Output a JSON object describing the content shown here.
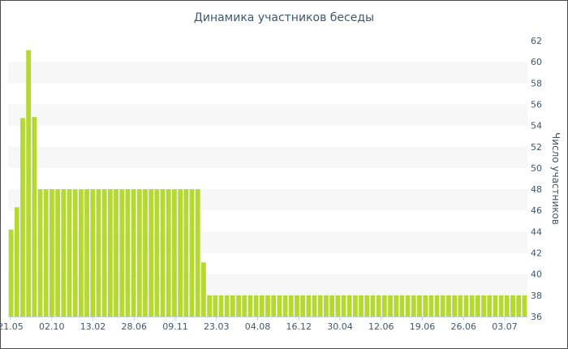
{
  "chart_data": {
    "type": "bar",
    "title": "Динамика участников беседы",
    "ylabel": "Число участников",
    "ylim": [
      36,
      62
    ],
    "yticks": [
      36,
      38,
      40,
      42,
      44,
      46,
      48,
      50,
      52,
      54,
      56,
      58,
      60,
      62
    ],
    "y_axis_position": "right",
    "x_tick_labels": [
      "21.05",
      "02.10",
      "13.02",
      "28.06",
      "09.11",
      "23.03",
      "04.08",
      "16.12",
      "30.04",
      "12.06",
      "19.06",
      "26.06",
      "03.07"
    ],
    "values": [
      44.2,
      46.3,
      54.7,
      61.1,
      54.8,
      48,
      48,
      48,
      48,
      48,
      48,
      48,
      48,
      48,
      48,
      48,
      48,
      48,
      48,
      48,
      48,
      48,
      48,
      48,
      48,
      48,
      48,
      48,
      48,
      48,
      48,
      48,
      48,
      41.1,
      38,
      38,
      38,
      38,
      38,
      38,
      38,
      38,
      38,
      38,
      38,
      38,
      38,
      38,
      38,
      38,
      38,
      38,
      38,
      38,
      38,
      38,
      38,
      38,
      38,
      38,
      38,
      38,
      38,
      38,
      38,
      38,
      38,
      38,
      38,
      38,
      38,
      38,
      38,
      38,
      38,
      38,
      38,
      38,
      38,
      38,
      38,
      38,
      38,
      38,
      38,
      38,
      38,
      38,
      38
    ],
    "bar_color": "#b5d931",
    "band_color": "#f7f7f7",
    "grid": false,
    "legend": "none"
  }
}
